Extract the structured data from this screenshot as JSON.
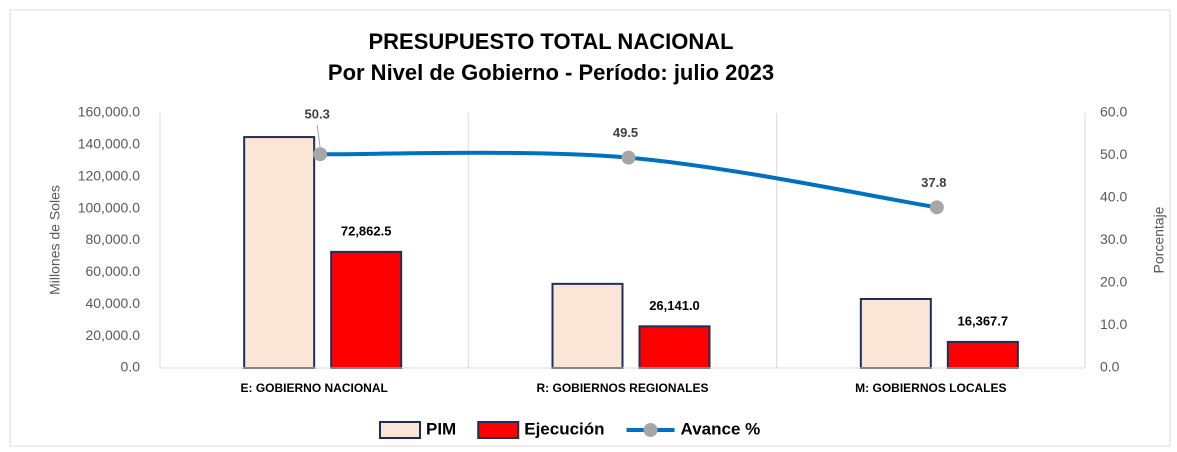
{
  "chart_data": {
    "type": "bar",
    "title": "PRESUPUESTO TOTAL  NACIONAL",
    "subtitle": "Por Nivel de Gobierno - Período:  julio  2023",
    "y_label": "Millones de Soles",
    "y2_label": "Porcentaje",
    "categories": [
      "E: GOBIERNO NACIONAL",
      "R: GOBIERNOS REGIONALES",
      "M: GOBIERNOS LOCALES"
    ],
    "series": [
      {
        "name": "PIM",
        "type": "bar",
        "color": "#fbe5d6",
        "edge": "#1f2d5a",
        "values": [
          144900,
          52800,
          43300
        ]
      },
      {
        "name": "Ejecución",
        "type": "bar",
        "color": "#ff0000",
        "edge": "#1f2d5a",
        "values": [
          72862.5,
          26141.0,
          16367.7
        ],
        "value_labels": [
          "72,862.5",
          "26,141.0",
          "16,367.7"
        ]
      },
      {
        "name": "Avance %",
        "type": "line",
        "axis": "y2",
        "color": "#0070c0",
        "marker_color": "#a6a6a6",
        "values": [
          50.3,
          49.5,
          37.8
        ]
      }
    ],
    "ylim": [
      0,
      160000
    ],
    "yticks": [
      {
        "value": 0,
        "label": "0.0"
      },
      {
        "value": 20000,
        "label": "20,000.0"
      },
      {
        "value": 40000,
        "label": "40,000.0"
      },
      {
        "value": 60000,
        "label": "60,000.0"
      },
      {
        "value": 80000,
        "label": "80,000.0"
      },
      {
        "value": 100000,
        "label": "100,000.0"
      },
      {
        "value": 120000,
        "label": "120,000.0"
      },
      {
        "value": 140000,
        "label": "140,000.0"
      },
      {
        "value": 160000,
        "label": "160,000.0"
      }
    ],
    "y2lim": [
      0,
      60
    ],
    "y2ticks": [
      {
        "value": 0,
        "label": "0.0"
      },
      {
        "value": 10,
        "label": "10.0"
      },
      {
        "value": 20,
        "label": "20.0"
      },
      {
        "value": 30,
        "label": "30.0"
      },
      {
        "value": 40,
        "label": "40.0"
      },
      {
        "value": 50,
        "label": "50.0"
      },
      {
        "value": 60,
        "label": "60.0"
      }
    ],
    "grid": false,
    "legend": "bottom"
  }
}
